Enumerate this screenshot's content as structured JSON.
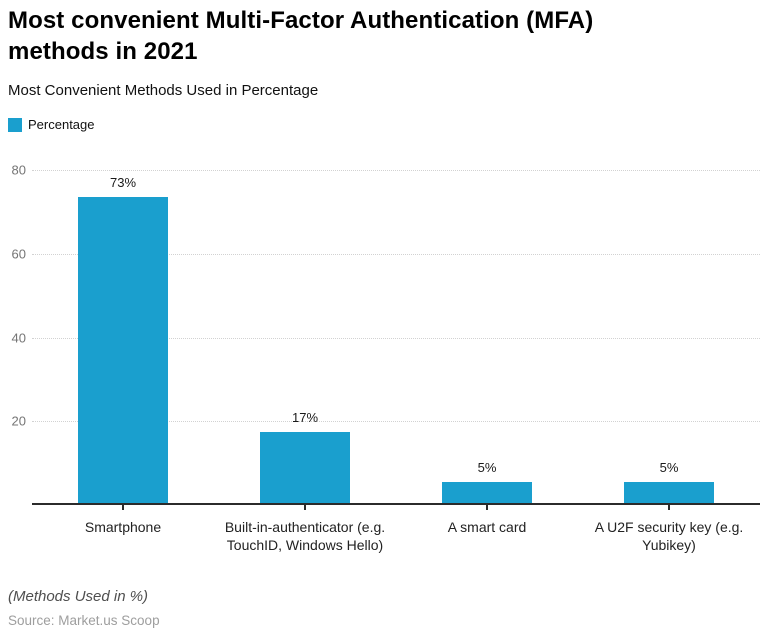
{
  "header": {
    "title_line1": "Most convenient Multi-Factor Authentication (MFA)",
    "title_line2": "methods in 2021",
    "subtitle": "Most Convenient Methods Used in Percentage"
  },
  "legend": {
    "label": "Percentage",
    "swatch_color": "#1A9FCE"
  },
  "chart_data": {
    "type": "bar",
    "title": "Most convenient Multi-Factor Authentication (MFA) methods in 2021",
    "subtitle": "Most Convenient Methods Used in Percentage",
    "categories": [
      "Smartphone",
      "Built-in-authenticator (e.g. TouchID, Windows Hello)",
      "A smart card",
      "A U2F security key (e.g. Yubikey)"
    ],
    "series": [
      {
        "name": "Percentage",
        "values": [
          73,
          17,
          5,
          5
        ]
      }
    ],
    "value_labels": [
      "73%",
      "17%",
      "5%",
      "5%"
    ],
    "yticks": [
      20,
      40,
      60,
      80
    ],
    "ylim": [
      0,
      80
    ],
    "bar_color": "#1A9FCE",
    "grid": true,
    "gridline_color": "#d2d2d2",
    "axis_color": "#2b2b2b",
    "legend_position": "top-left"
  },
  "footer": {
    "note": "(Methods Used in %)",
    "source": "Source: Market.us Scoop"
  }
}
